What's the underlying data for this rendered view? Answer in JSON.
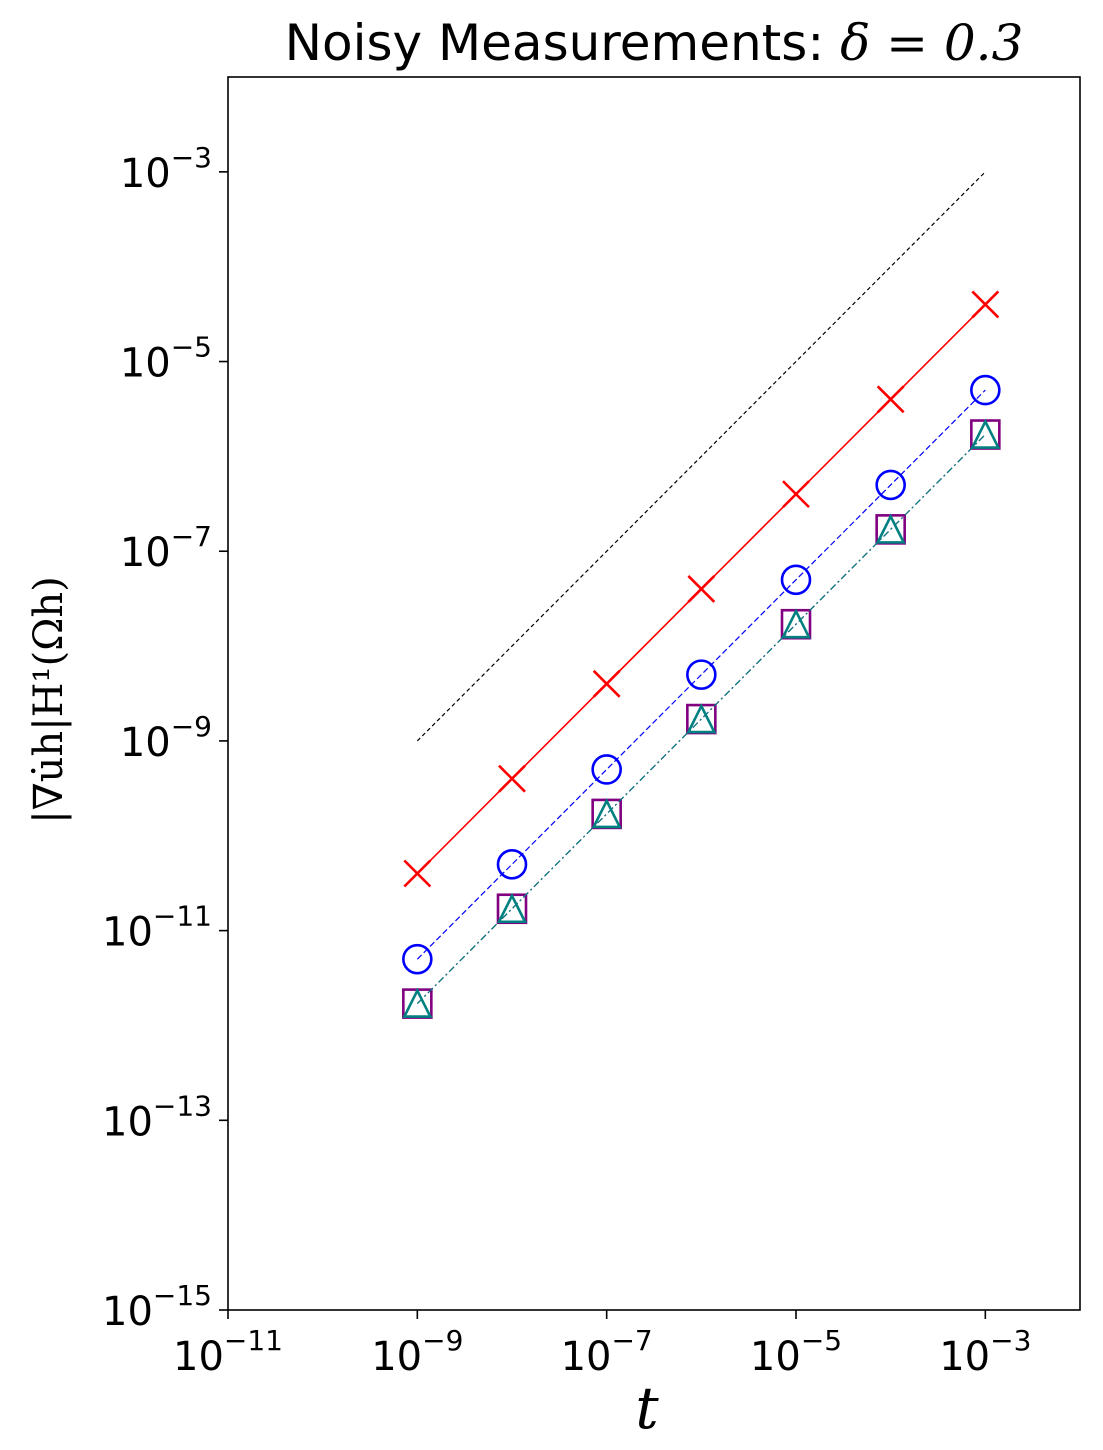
{
  "chart_data": {
    "type": "line",
    "title": "Noisy Measurements: ",
    "title_math": "δ = 0.3",
    "xlabel": "t",
    "ylabel": "|∇u̇h|H¹(Ωh)",
    "x_scale": "log",
    "y_scale": "log",
    "xlim": [
      1e-11,
      0.01
    ],
    "ylim": [
      1e-15,
      0.01
    ],
    "x_tick_exponents": [
      -11,
      -9,
      -7,
      -5,
      -3
    ],
    "y_tick_exponents": [
      -15,
      -13,
      -11,
      -9,
      -7,
      -5,
      -3
    ],
    "tick_base": "10",
    "grid": false,
    "x": [
      1e-09,
      1e-08,
      1e-07,
      1e-06,
      1e-05,
      0.0001,
      0.001
    ],
    "series": [
      {
        "marker": "x",
        "line": "solid",
        "color": "#ff0000",
        "values": [
          4e-11,
          4e-10,
          4e-09,
          4e-08,
          4e-07,
          4e-06,
          4e-05
        ]
      },
      {
        "marker": "circle",
        "line": "dashed",
        "color": "#0000ff",
        "values": [
          5e-12,
          5e-11,
          5e-10,
          5e-09,
          5e-08,
          5e-07,
          5e-06
        ]
      },
      {
        "marker": "square",
        "line": "dashdot",
        "color": "#800080",
        "values": [
          1.7e-12,
          1.7e-11,
          1.7e-10,
          1.7e-09,
          1.7e-08,
          1.7e-07,
          1.7e-06
        ]
      },
      {
        "marker": "triangle",
        "line": "dashdot",
        "color": "#008080",
        "values": [
          1.7e-12,
          1.7e-11,
          1.7e-10,
          1.7e-09,
          1.7e-08,
          1.7e-07,
          1.7e-06
        ]
      }
    ],
    "reference_line": {
      "line": "dashed",
      "color": "#000000",
      "x": [
        1e-09,
        0.001
      ],
      "values": [
        1e-09,
        0.001
      ]
    }
  }
}
